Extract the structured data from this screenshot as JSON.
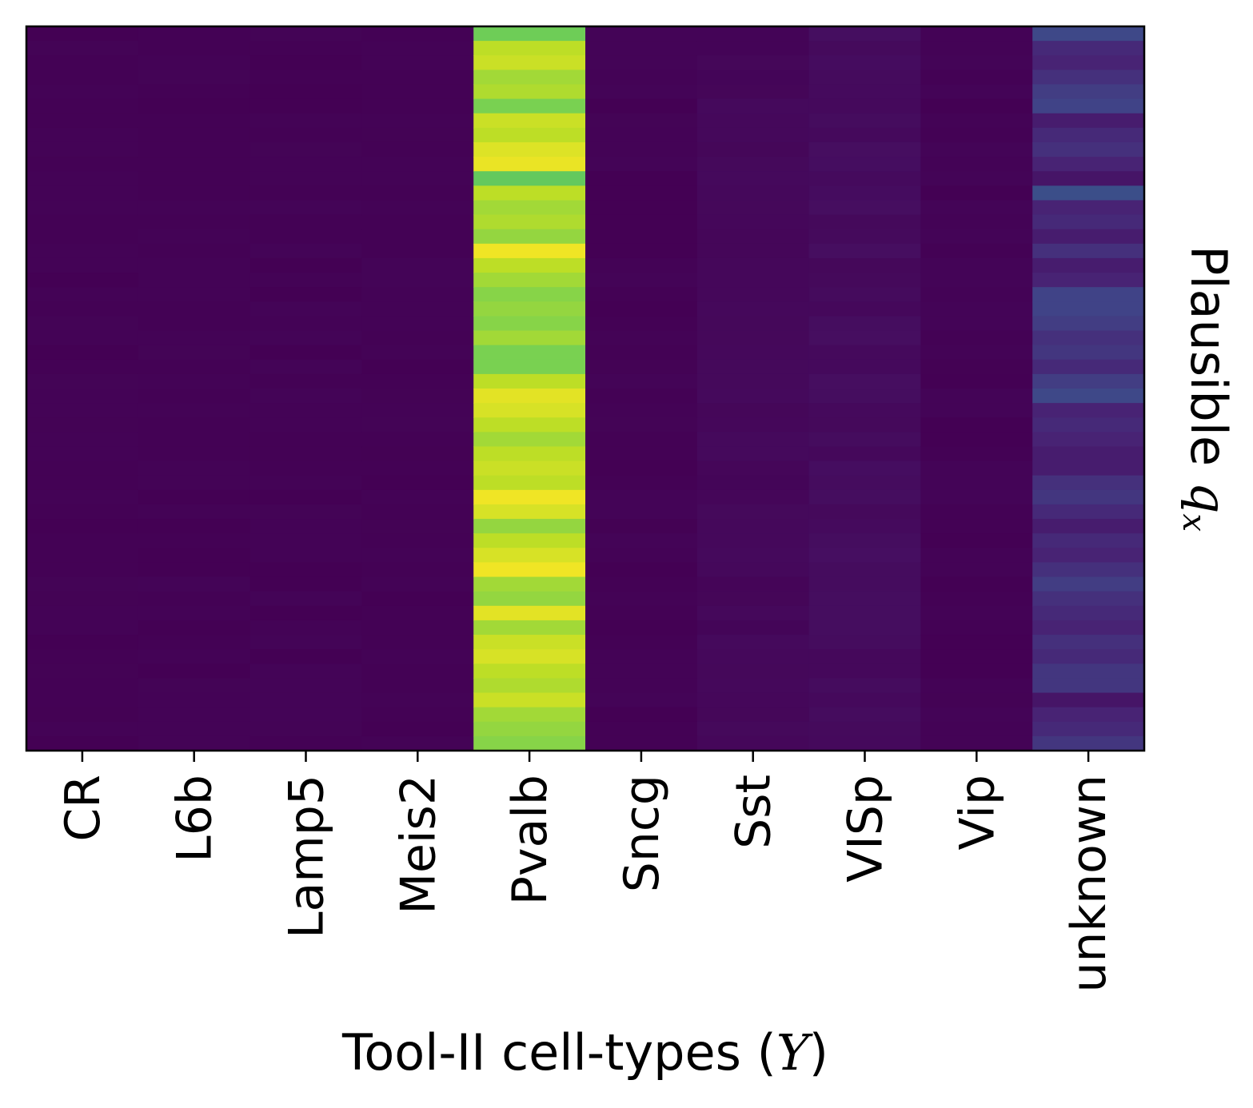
{
  "chart_data": {
    "type": "heatmap",
    "colormap": "viridis",
    "xlabel": {
      "text": "Tool-II cell-types (",
      "math": "Y",
      "suffix": ")"
    },
    "ylabel": {
      "text": "Plausible ",
      "math": "q",
      "sub": "x"
    },
    "categories": [
      "CR",
      "L6b",
      "Lamp5",
      "Meis2",
      "Pvalb",
      "Sncg",
      "Sst",
      "VISp",
      "Vip",
      "unknown"
    ],
    "value_range": [
      0,
      1
    ],
    "grid": false,
    "legend": "none",
    "row_count": 50,
    "columns": {
      "CR": {
        "base": 0.0,
        "variation": 0.008
      },
      "L6b": {
        "base": 0.0,
        "variation": 0.008
      },
      "Lamp5": {
        "base": 0.0,
        "variation": 0.01
      },
      "Meis2": {
        "base": 0.0,
        "variation": 0.008
      },
      "Pvalb": {
        "values": [
          0.78,
          0.9,
          0.92,
          0.86,
          0.88,
          0.8,
          0.92,
          0.9,
          0.95,
          0.97,
          0.76,
          0.9,
          0.86,
          0.88,
          0.84,
          0.98,
          0.9,
          0.86,
          0.82,
          0.84,
          0.82,
          0.86,
          0.8,
          0.8,
          0.9,
          0.96,
          0.94,
          0.9,
          0.86,
          0.9,
          0.92,
          0.9,
          0.98,
          0.94,
          0.84,
          0.9,
          0.94,
          0.98,
          0.86,
          0.84,
          0.96,
          0.86,
          0.92,
          0.94,
          0.9,
          0.88,
          0.92,
          0.86,
          0.84,
          0.82
        ]
      },
      "Sncg": {
        "base": 0.0,
        "variation": 0.01
      },
      "Sst": {
        "base": 0.01,
        "variation": 0.015
      },
      "VISp": {
        "base": 0.02,
        "variation": 0.02
      },
      "Vip": {
        "base": 0.0,
        "variation": 0.01
      },
      "unknown": {
        "values": [
          0.22,
          0.12,
          0.1,
          0.14,
          0.18,
          0.2,
          0.08,
          0.12,
          0.14,
          0.1,
          0.06,
          0.24,
          0.1,
          0.12,
          0.08,
          0.14,
          0.08,
          0.1,
          0.2,
          0.2,
          0.18,
          0.14,
          0.16,
          0.12,
          0.18,
          0.22,
          0.1,
          0.12,
          0.1,
          0.08,
          0.08,
          0.14,
          0.16,
          0.12,
          0.08,
          0.12,
          0.1,
          0.14,
          0.18,
          0.14,
          0.12,
          0.1,
          0.14,
          0.12,
          0.16,
          0.16,
          0.06,
          0.1,
          0.12,
          0.16
        ]
      }
    }
  }
}
